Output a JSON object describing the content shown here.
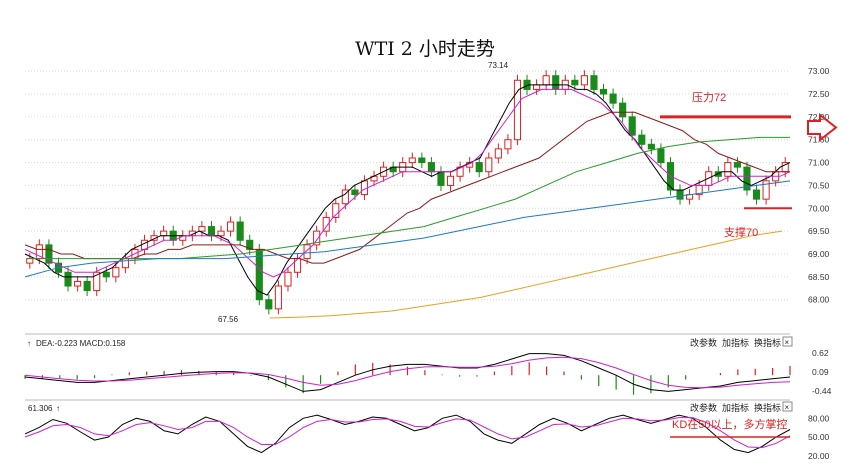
{
  "chart_data": {
    "type": "candlestick",
    "title": "WTI 2 小时走势",
    "main_panel": {
      "ylim": [
        67.6,
        73.2
      ],
      "y_ticks": [
        73.0,
        72.5,
        72.0,
        71.5,
        71.0,
        70.5,
        70.0,
        69.5,
        69.0,
        68.5,
        68.0
      ],
      "y_tick_labels": [
        "73.00",
        "72.50",
        "72.00",
        "71.50",
        "71.00",
        "70.50",
        "70.00",
        "69.50",
        "69.00",
        "68.50",
        "68.00"
      ],
      "high_label": "73.14",
      "low_label": "67.56",
      "high_value": 73.14,
      "low_value": 67.56,
      "close_series": [
        68.9,
        69.2,
        68.8,
        68.6,
        68.3,
        68.4,
        68.2,
        68.6,
        68.5,
        68.7,
        68.9,
        69.1,
        69.3,
        69.4,
        69.5,
        69.3,
        69.4,
        69.5,
        69.6,
        69.4,
        69.5,
        69.7,
        69.3,
        69.1,
        68.0,
        67.8,
        68.3,
        68.6,
        68.9,
        69.2,
        69.5,
        69.8,
        70.1,
        70.4,
        70.3,
        70.6,
        70.7,
        70.9,
        70.8,
        71.0,
        71.1,
        71.0,
        70.8,
        70.5,
        70.7,
        70.9,
        71.0,
        70.8,
        71.1,
        71.3,
        71.5,
        72.8,
        72.6,
        72.7,
        72.9,
        72.6,
        72.8,
        72.7,
        72.9,
        72.6,
        72.5,
        72.3,
        72.0,
        71.6,
        71.4,
        71.3,
        71.0,
        70.4,
        70.2,
        70.3,
        70.5,
        70.8,
        70.7,
        71.0,
        70.9,
        70.4,
        70.2,
        70.6,
        70.8,
        71.0
      ],
      "ma_series": [
        {
          "name": "MA-short",
          "color": "#000000",
          "values": [
            69.0,
            68.9,
            68.8,
            68.6,
            68.5,
            68.5,
            68.5,
            68.5,
            68.6,
            68.7,
            68.9,
            69.1,
            69.2,
            69.3,
            69.4,
            69.4,
            69.4,
            69.4,
            69.5,
            69.4,
            69.4,
            69.3,
            68.9,
            68.5,
            68.2,
            68.1,
            68.4,
            68.8,
            69.1,
            69.4,
            69.7,
            70.0,
            70.2,
            70.3,
            70.5,
            70.6,
            70.7,
            70.8,
            70.9,
            70.9,
            70.9,
            70.8,
            70.7,
            70.8,
            70.8,
            70.9,
            71.0,
            71.1,
            71.5,
            71.9,
            72.3,
            72.6,
            72.7,
            72.7,
            72.7,
            72.7,
            72.7,
            72.6,
            72.6,
            72.5,
            72.3,
            72.0,
            71.7,
            71.5,
            71.2,
            70.9,
            70.6,
            70.4,
            70.4,
            70.5,
            70.6,
            70.7,
            70.8,
            70.8,
            70.6,
            70.5,
            70.6,
            70.7,
            70.9,
            71.0
          ]
        },
        {
          "name": "MA-mid",
          "color": "#d020d0",
          "values": [
            69.1,
            69.0,
            68.9,
            68.8,
            68.7,
            68.6,
            68.6,
            68.6,
            68.7,
            68.8,
            68.9,
            69.0,
            69.1,
            69.2,
            69.3,
            69.3,
            69.4,
            69.4,
            69.4,
            69.4,
            69.3,
            69.2,
            69.0,
            68.8,
            68.6,
            68.5,
            68.6,
            68.8,
            69.0,
            69.2,
            69.5,
            69.8,
            70.0,
            70.2,
            70.4,
            70.5,
            70.6,
            70.7,
            70.8,
            70.8,
            70.8,
            70.8,
            70.8,
            70.8,
            70.9,
            71.0,
            71.2,
            71.5,
            71.8,
            72.1,
            72.4,
            72.5,
            72.6,
            72.6,
            72.6,
            72.6,
            72.5,
            72.4,
            72.3,
            72.1,
            71.9,
            71.6,
            71.3,
            71.1,
            70.9,
            70.7,
            70.6,
            70.5,
            70.5,
            70.5,
            70.6,
            70.7,
            70.7,
            70.7,
            70.7,
            70.7,
            70.7,
            70.8
          ]
        },
        {
          "name": "MA-long",
          "color": "#8b1a1a",
          "values": [
            69.2,
            69.1,
            69.1,
            69.0,
            69.0,
            68.9,
            68.9,
            68.9,
            68.9,
            68.9,
            69.0,
            69.0,
            69.1,
            69.1,
            69.2,
            69.2,
            69.2,
            69.2,
            69.2,
            69.1,
            69.1,
            69.0,
            68.9,
            68.9,
            68.8,
            68.8,
            68.9,
            69.0,
            69.1,
            69.3,
            69.5,
            69.7,
            69.9,
            70.0,
            70.2,
            70.3,
            70.4,
            70.5,
            70.6,
            70.7,
            70.8,
            70.9,
            71.0,
            71.1,
            71.3,
            71.5,
            71.7,
            71.9,
            72.0,
            72.1,
            72.1,
            72.1,
            72.0,
            71.9,
            71.8,
            71.7,
            71.5,
            71.4,
            71.2,
            71.1,
            71.0,
            70.9,
            70.8,
            70.8,
            70.8
          ]
        },
        {
          "name": "MA-green",
          "color": "#2a9a2a",
          "values": [
            68.9,
            68.9,
            68.9,
            68.9,
            68.9,
            68.9,
            68.95,
            69.0,
            69.1,
            69.2,
            69.3,
            69.4,
            69.5,
            69.6,
            69.8,
            70.0,
            70.2,
            70.5,
            70.8,
            71.0,
            71.2,
            71.35,
            71.45,
            71.5,
            71.55,
            71.55
          ]
        },
        {
          "name": "MA-blue",
          "color": "#1e7ac8",
          "values": [
            68.5,
            68.7,
            68.8,
            68.85,
            68.9,
            68.9,
            68.9,
            68.95,
            69.0,
            69.05,
            69.15,
            69.25,
            69.35,
            69.5,
            69.65,
            69.8,
            69.9,
            70.0,
            70.1,
            70.2,
            70.3,
            70.4,
            70.5,
            70.6
          ]
        },
        {
          "name": "MA-orange",
          "color": "#e8a020",
          "values": [
            67.6,
            67.62,
            67.65,
            67.7,
            67.75,
            67.85,
            67.95,
            68.05,
            68.2,
            68.35,
            68.5,
            68.65,
            68.8,
            68.95,
            69.1,
            69.25,
            69.4,
            69.5
          ]
        }
      ],
      "annotations": {
        "resistance_label": "压力72",
        "resistance_value": 72.0,
        "support_label": "支撑70",
        "support_value": 70.0
      }
    },
    "macd_panel": {
      "legend": "DEA:-0.223  MACD:0.158",
      "y_tick_labels": [
        "0.62",
        "0.09",
        "-0.44"
      ],
      "ylim": [
        -0.55,
        0.7
      ],
      "dif": [
        -0.05,
        -0.1,
        -0.15,
        -0.2,
        -0.2,
        -0.15,
        -0.1,
        -0.05,
        0,
        0.05,
        0.08,
        0.1,
        0.1,
        0.05,
        -0.05,
        -0.25,
        -0.45,
        -0.4,
        -0.2,
        0,
        0.15,
        0.25,
        0.3,
        0.3,
        0.25,
        0.2,
        0.2,
        0.3,
        0.45,
        0.6,
        0.6,
        0.55,
        0.4,
        0.2,
        0,
        -0.25,
        -0.4,
        -0.45,
        -0.4,
        -0.35,
        -0.3,
        -0.2,
        -0.15,
        -0.1,
        -0.05
      ],
      "dea": [
        0,
        -0.05,
        -0.1,
        -0.14,
        -0.16,
        -0.16,
        -0.14,
        -0.1,
        -0.06,
        -0.02,
        0.02,
        0.05,
        0.07,
        0.06,
        0.02,
        -0.08,
        -0.2,
        -0.28,
        -0.25,
        -0.15,
        -0.02,
        0.1,
        0.18,
        0.23,
        0.24,
        0.22,
        0.22,
        0.25,
        0.32,
        0.42,
        0.48,
        0.5,
        0.46,
        0.35,
        0.2,
        0.02,
        -0.15,
        -0.28,
        -0.34,
        -0.35,
        -0.33,
        -0.28,
        -0.24,
        -0.2,
        -0.18
      ]
    },
    "kd_panel": {
      "legend": "61.306",
      "y_tick_labels": [
        "80.00",
        "50.00",
        "20.00"
      ],
      "ylim": [
        10,
        90
      ],
      "k": [
        55,
        65,
        78,
        72,
        58,
        45,
        50,
        70,
        80,
        75,
        60,
        55,
        70,
        82,
        75,
        55,
        35,
        25,
        40,
        65,
        80,
        85,
        78,
        70,
        75,
        82,
        80,
        70,
        60,
        65,
        80,
        85,
        75,
        55,
        45,
        40,
        55,
        70,
        80,
        72,
        60,
        70,
        80,
        85,
        78,
        72,
        78,
        85,
        80,
        65,
        45,
        30,
        25,
        35,
        50,
        62
      ],
      "d": [
        50,
        58,
        68,
        70,
        65,
        55,
        52,
        60,
        70,
        73,
        68,
        62,
        65,
        75,
        75,
        65,
        50,
        38,
        38,
        50,
        65,
        75,
        78,
        74,
        74,
        78,
        79,
        75,
        67,
        66,
        73,
        79,
        77,
        66,
        55,
        47,
        50,
        60,
        70,
        71,
        66,
        68,
        74,
        80,
        79,
        76,
        77,
        81,
        81,
        73,
        60,
        45,
        34,
        33,
        40,
        52
      ],
      "annotation": "KD在50以上，多方掌控",
      "line_value": 50
    },
    "panel_buttons": [
      "改参数",
      "加指标",
      "换指标"
    ],
    "close_symbol": "×",
    "colors": {
      "up": "#e02020",
      "down": "#1a8a1a",
      "resistance": "#e02020",
      "support": "#e02020",
      "arrow": "#e02020"
    }
  }
}
